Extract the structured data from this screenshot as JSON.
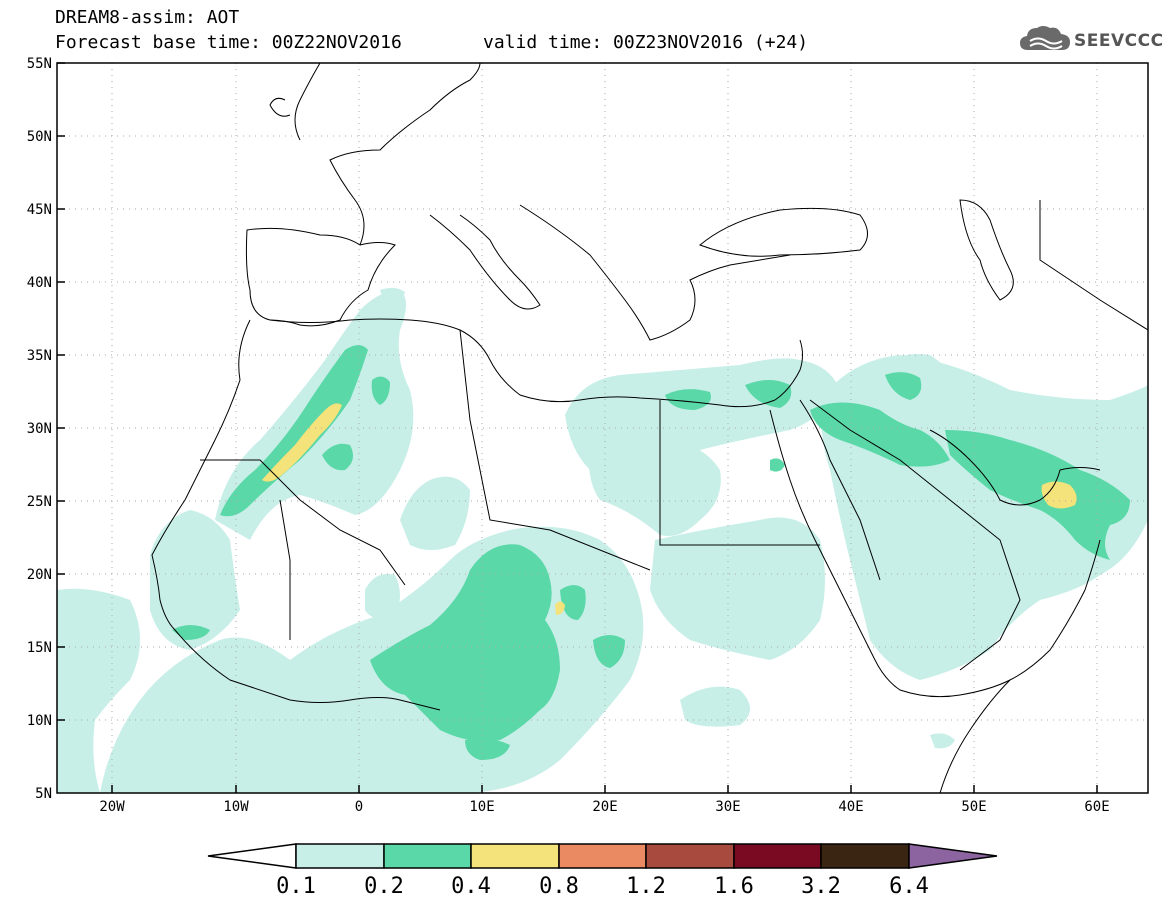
{
  "header": {
    "title": "DREAM8-assim: AOT",
    "base_time": "Forecast base time: 00Z22NOV2016",
    "valid_time": "valid time: 00Z23NOV2016 (+24)"
  },
  "logo": {
    "text": "SEEVCCC",
    "icon": "cloud-icon"
  },
  "map": {
    "lat_labels": [
      "55N",
      "50N",
      "45N",
      "40N",
      "35N",
      "30N",
      "25N",
      "20N",
      "15N",
      "10N",
      "5N"
    ],
    "lon_labels": [
      "20W",
      "10W",
      "0",
      "10E",
      "20E",
      "30E",
      "40E",
      "50E",
      "60E"
    ],
    "lat_range": [
      5,
      55
    ],
    "lon_range": [
      -25,
      65
    ],
    "grid": true,
    "grid_style": "dotted"
  },
  "colorbar": {
    "levels": [
      "0.1",
      "0.2",
      "0.4",
      "0.8",
      "1.2",
      "1.6",
      "3.2",
      "6.4"
    ],
    "colors": [
      "#c7efe8",
      "#5bd8a8",
      "#f4e27a",
      "#e98a62",
      "#a84a3e",
      "#7a0a22",
      "#3a2412",
      "#8c64a0"
    ],
    "under_color": "#ffffff",
    "over_color": "#8c64a0"
  },
  "colors": {
    "level_0_1": "#c7efe8",
    "level_0_2": "#5bd8a8",
    "level_0_4": "#f4e27a",
    "coast": "#000000",
    "grid": "#aaaaaa"
  }
}
